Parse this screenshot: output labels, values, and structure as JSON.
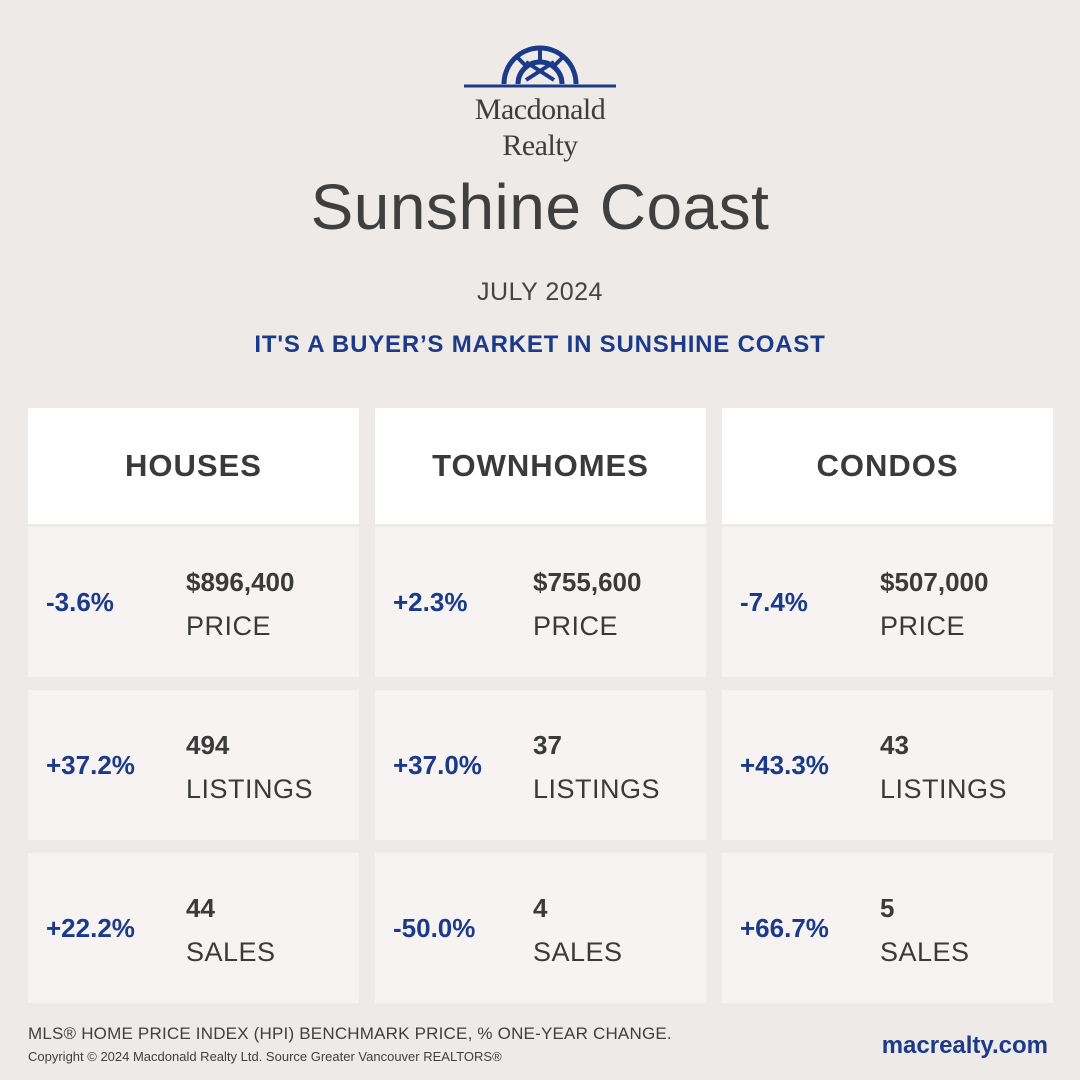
{
  "brand": {
    "line1": "Macdonald",
    "line2": "Realty",
    "color": "#1c3a8a"
  },
  "title": "Sunshine Coast",
  "month": "JULY 2024",
  "tagline": "IT'S A BUYER’S MARKET IN SUNSHINE COAST",
  "categories": [
    {
      "name": "HOUSES",
      "price": {
        "change": "-3.6%",
        "value": "$896,400",
        "label": "PRICE"
      },
      "listings": {
        "change": "+37.2%",
        "value": "494",
        "label": "LISTINGS"
      },
      "sales": {
        "change": "+22.2%",
        "value": "44",
        "label": "SALES"
      }
    },
    {
      "name": "TOWNHOMES",
      "price": {
        "change": "+2.3%",
        "value": "$755,600",
        "label": "PRICE"
      },
      "listings": {
        "change": "+37.0%",
        "value": "37",
        "label": "LISTINGS"
      },
      "sales": {
        "change": "-50.0%",
        "value": "4",
        "label": "SALES"
      }
    },
    {
      "name": "CONDOS",
      "price": {
        "change": "-7.4%",
        "value": "$507,000",
        "label": "PRICE"
      },
      "listings": {
        "change": "+43.3%",
        "value": "43",
        "label": "LISTINGS"
      },
      "sales": {
        "change": "+66.7%",
        "value": "5",
        "label": "SALES"
      }
    }
  ],
  "footer": {
    "note": "MLS® HOME PRICE INDEX (HPI) BENCHMARK PRICE, % ONE-YEAR CHANGE.",
    "copyright": "Copyright © 2024 Macdonald Realty Ltd. Source Greater Vancouver REALTORS®",
    "website": "macrealty.com"
  }
}
